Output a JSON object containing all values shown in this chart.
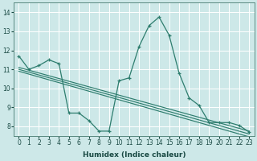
{
  "xlabel": "Humidex (Indice chaleur)",
  "xlim": [
    -0.5,
    23.5
  ],
  "ylim": [
    7.5,
    14.5
  ],
  "xticks": [
    0,
    1,
    2,
    3,
    4,
    5,
    6,
    7,
    8,
    9,
    10,
    11,
    12,
    13,
    14,
    15,
    16,
    17,
    18,
    19,
    20,
    21,
    22,
    23
  ],
  "yticks": [
    8,
    9,
    10,
    11,
    12,
    13,
    14
  ],
  "bg_color": "#cde8e8",
  "grid_color": "#ffffff",
  "line_color": "#2e7d6e",
  "main_line": {
    "x": [
      0,
      1,
      2,
      3,
      4,
      5,
      6,
      7,
      8,
      9,
      10,
      11,
      12,
      13,
      14,
      15,
      16,
      17,
      18,
      19,
      20,
      21,
      22,
      23
    ],
    "y": [
      11.7,
      11.0,
      11.2,
      11.5,
      11.3,
      8.7,
      8.7,
      8.3,
      7.75,
      7.75,
      10.4,
      10.55,
      12.2,
      13.3,
      13.75,
      12.8,
      10.8,
      9.5,
      9.1,
      8.2,
      8.2,
      8.2,
      8.05,
      7.7
    ]
  },
  "trend_lines": [
    {
      "x": [
        0,
        23
      ],
      "y": [
        11.1,
        7.75
      ]
    },
    {
      "x": [
        0,
        23
      ],
      "y": [
        11.0,
        7.6
      ]
    },
    {
      "x": [
        0,
        23
      ],
      "y": [
        10.9,
        7.45
      ]
    }
  ]
}
